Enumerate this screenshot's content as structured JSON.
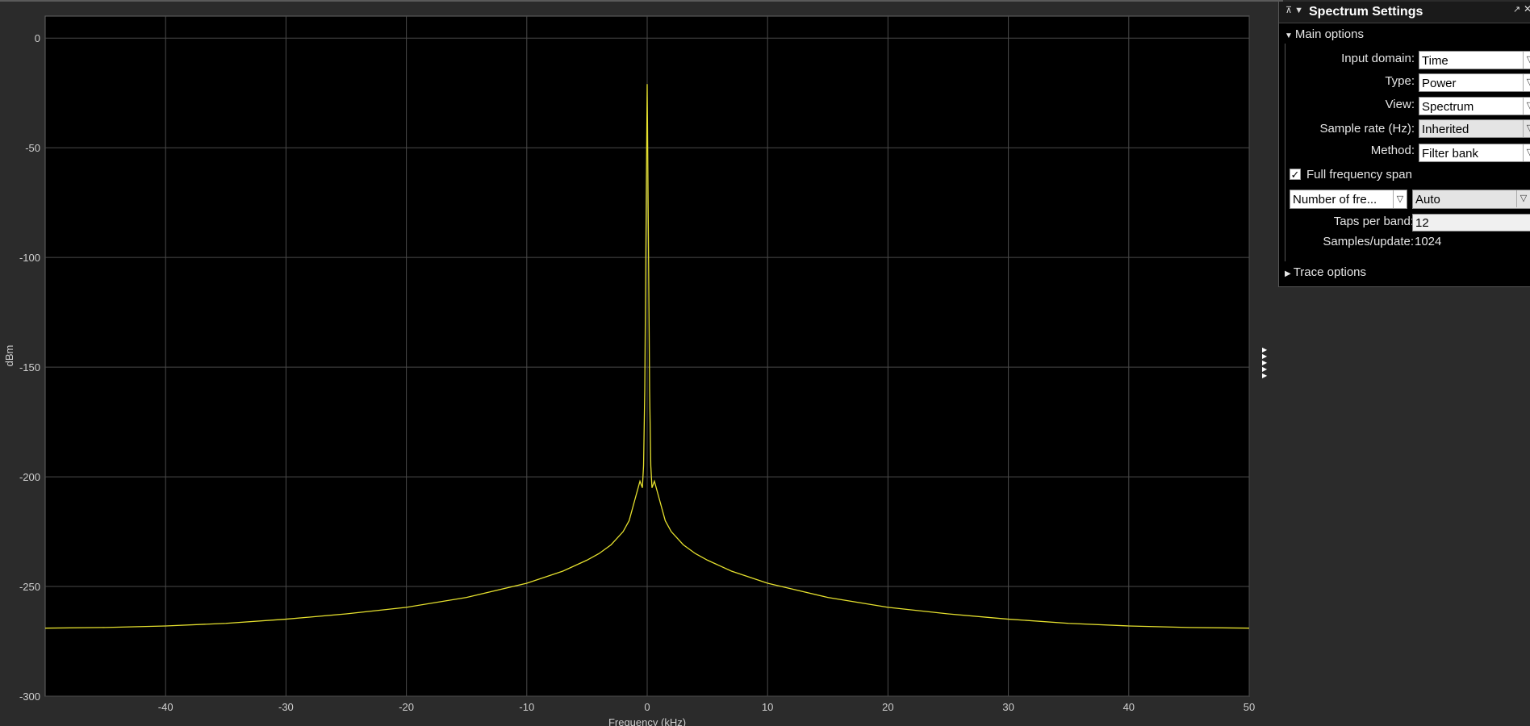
{
  "panel": {
    "title": "Spectrum Settings",
    "main_options": {
      "label": "Main options",
      "input_domain": {
        "label": "Input domain:",
        "value": "Time"
      },
      "type": {
        "label": "Type:",
        "value": "Power"
      },
      "view": {
        "label": "View:",
        "value": "Spectrum"
      },
      "sample_rate": {
        "label": "Sample rate (Hz):",
        "value": "Inherited"
      },
      "method": {
        "label": "Method:",
        "value": "Filter bank"
      },
      "full_span": {
        "label": "Full frequency span",
        "checked": true
      },
      "freq_spec": {
        "value": "Number of fre...",
        "mode": "Auto"
      },
      "taps_per_band": {
        "label": "Taps per band:",
        "value": "12"
      },
      "samples_update": {
        "label": "Samples/update:",
        "value": "1024"
      }
    },
    "trace_options": {
      "label": "Trace options"
    }
  },
  "chart_data": {
    "type": "line",
    "title": "",
    "xlabel": "Frequency (kHz)",
    "ylabel": "dBm",
    "xlim": [
      -50,
      50
    ],
    "ylim": [
      -300,
      10
    ],
    "xticks": [
      -40,
      -30,
      -20,
      -10,
      0,
      10,
      20,
      30,
      40,
      50
    ],
    "yticks": [
      0,
      -50,
      -100,
      -150,
      -200,
      -250,
      -300
    ],
    "grid": true,
    "background": "#000000",
    "line_color": "#e5e02e",
    "series": [
      {
        "x": [
          -50,
          -45,
          -40,
          -35,
          -30,
          -25,
          -20,
          -15,
          -10,
          -7,
          -5,
          -4,
          -3,
          -2,
          -1.5,
          -1,
          -0.6,
          -0.4,
          -0.3,
          -0.2,
          -0.1,
          0,
          0.1,
          0.2,
          0.3,
          0.4,
          0.6,
          1,
          1.5,
          2,
          3,
          4,
          5,
          7,
          10,
          15,
          20,
          25,
          30,
          35,
          40,
          45,
          50
        ],
        "y": [
          -269,
          -268.7,
          -268,
          -266.8,
          -264.9,
          -262.5,
          -259.5,
          -255,
          -248.5,
          -243,
          -238,
          -235,
          -231,
          -225,
          -220,
          -210,
          -202,
          -205,
          -195,
          -160,
          -90,
          -21,
          -90,
          -160,
          -195,
          -205,
          -202,
          -210,
          -220,
          -225,
          -231,
          -235,
          -238,
          -243,
          -248.5,
          -255,
          -259.5,
          -262.5,
          -264.9,
          -266.8,
          -268,
          -268.7,
          -269
        ]
      }
    ]
  }
}
